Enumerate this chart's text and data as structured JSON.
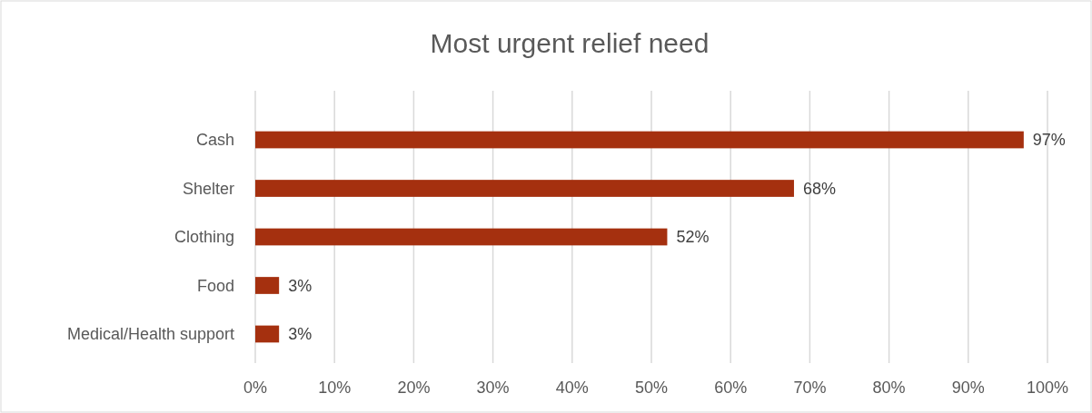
{
  "chart_data": {
    "type": "bar",
    "orientation": "horizontal",
    "title": "Most urgent relief need",
    "categories": [
      "Cash",
      "Shelter",
      "Clothing",
      "Food",
      "Medical/Health support"
    ],
    "values": [
      97,
      68,
      52,
      3,
      3
    ],
    "value_labels": [
      "97%",
      "68%",
      "52%",
      "3%",
      "3%"
    ],
    "color": "#a5300f",
    "xlim": [
      0,
      100
    ],
    "xticks": [
      {
        "value": 0,
        "label": "0%"
      },
      {
        "value": 10,
        "label": "10%"
      },
      {
        "value": 20,
        "label": "20%"
      },
      {
        "value": 30,
        "label": "30%"
      },
      {
        "value": 40,
        "label": "40%"
      },
      {
        "value": 50,
        "label": "50%"
      },
      {
        "value": 60,
        "label": "60%"
      },
      {
        "value": 70,
        "label": "70%"
      },
      {
        "value": 80,
        "label": "80%"
      },
      {
        "value": 90,
        "label": "90%"
      },
      {
        "value": 100,
        "label": "100%"
      }
    ],
    "grid": "x"
  }
}
